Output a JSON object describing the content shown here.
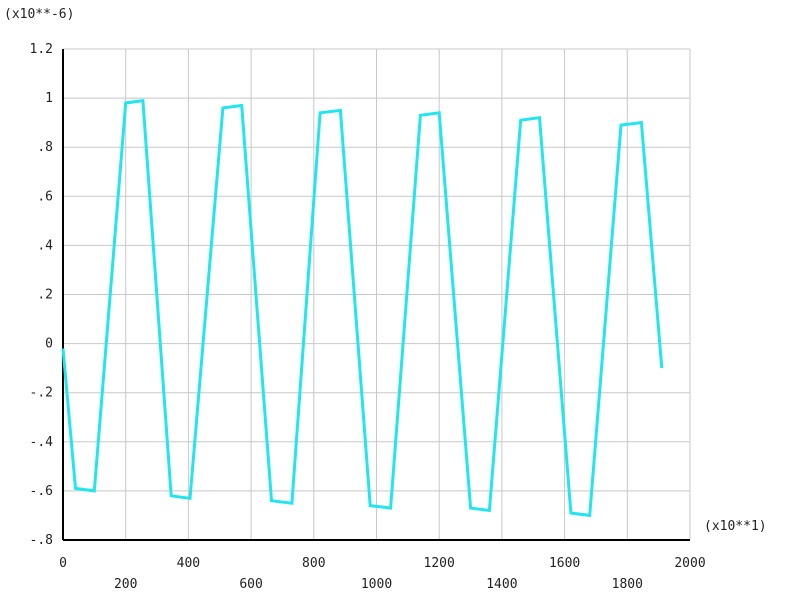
{
  "chart_data": {
    "type": "line",
    "title": "",
    "xlabel": "",
    "ylabel": "",
    "y_multiplier_label": "(x10**-6)",
    "x_multiplier_label": "(x10**1)",
    "xlim": [
      0,
      2000
    ],
    "ylim": [
      -0.8,
      1.2
    ],
    "grid": true,
    "x_ticks_upper": [
      "0",
      "400",
      "800",
      "1200",
      "1600",
      "2000"
    ],
    "x_ticks_lower": [
      "200",
      "600",
      "1000",
      "1400",
      "1800"
    ],
    "y_ticks": [
      "1.2",
      "1",
      ".8",
      ".6",
      ".4",
      ".2",
      "0",
      "-.2",
      "-.4",
      "-.6",
      "-.8"
    ],
    "series": [
      {
        "color": "#22e5f0",
        "x": [
          0,
          40,
          100,
          200,
          255,
          345,
          405,
          510,
          570,
          665,
          730,
          820,
          885,
          980,
          1045,
          1140,
          1200,
          1300,
          1360,
          1460,
          1520,
          1620,
          1680,
          1780,
          1845,
          1910
        ],
        "y": [
          -0.02,
          -0.59,
          -0.6,
          0.98,
          0.99,
          -0.62,
          -0.63,
          0.96,
          0.97,
          -0.64,
          -0.65,
          0.94,
          0.95,
          -0.66,
          -0.67,
          0.93,
          0.94,
          -0.67,
          -0.68,
          0.91,
          0.92,
          -0.69,
          -0.7,
          0.89,
          0.9,
          -0.1
        ]
      }
    ]
  }
}
